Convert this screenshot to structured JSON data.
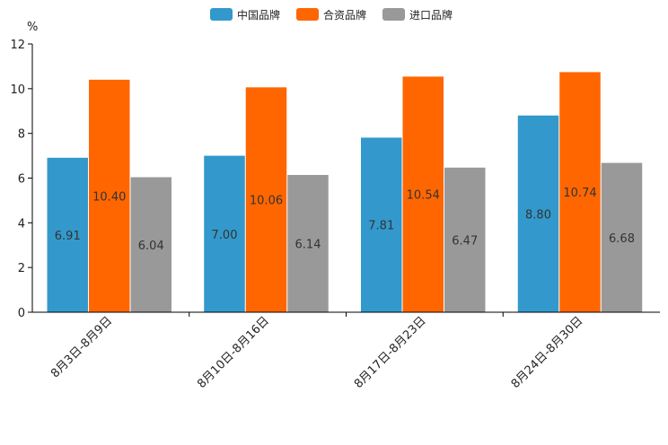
{
  "chart_data": {
    "type": "bar",
    "ylabel": "%",
    "ylim": [
      0,
      12
    ],
    "yticks": [
      0,
      2,
      4,
      6,
      8,
      10,
      12
    ],
    "legend_position": "top",
    "categories": [
      "8月3日-8月9日",
      "8月10日-8月16日",
      "8月17日-8月23日",
      "8月24日-8月30日"
    ],
    "series": [
      {
        "name": "中国品牌",
        "color": "#3399CC",
        "values": [
          6.91,
          7.0,
          7.81,
          8.8
        ],
        "labels": [
          "6.91",
          "7.00",
          "7.81",
          "8.80"
        ]
      },
      {
        "name": "合资品牌",
        "color": "#FF6600",
        "values": [
          10.4,
          10.06,
          10.54,
          10.74
        ],
        "labels": [
          "10.40",
          "10.06",
          "10.54",
          "10.74"
        ]
      },
      {
        "name": "进口品牌",
        "color": "#999999",
        "values": [
          6.04,
          6.14,
          6.47,
          6.68
        ],
        "labels": [
          "6.04",
          "6.14",
          "6.47",
          "6.68"
        ]
      }
    ]
  }
}
